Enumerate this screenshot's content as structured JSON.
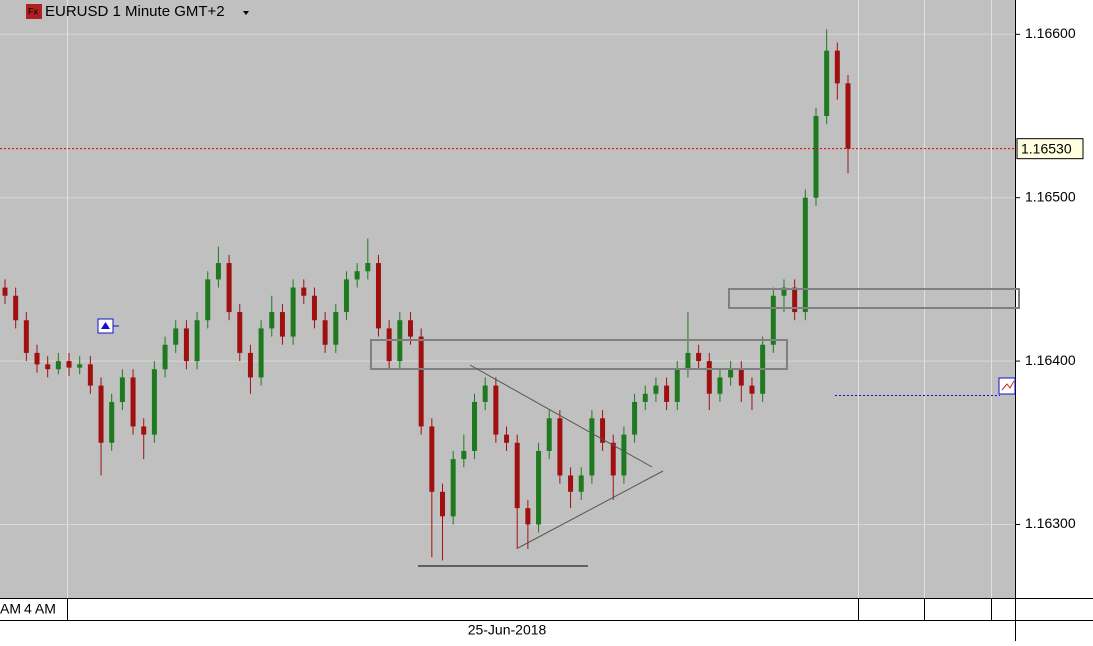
{
  "chart_data": {
    "type": "candlestick",
    "title": "EURUSD 1 Minute GMT+2",
    "series": [
      {
        "up_color": "#1e7a1e",
        "down_color": "#a01010",
        "open": [
          1.16445,
          1.1644,
          1.16425,
          1.16405,
          1.16398,
          1.16395,
          1.164,
          1.16396,
          1.16398,
          1.16385,
          1.1635,
          1.16375,
          1.1639,
          1.1636,
          1.16355,
          1.16395,
          1.1641,
          1.1642,
          1.164,
          1.16425,
          1.1645,
          1.1646,
          1.1643,
          1.16405,
          1.1639,
          1.1642,
          1.1643,
          1.16415,
          1.16445,
          1.1644,
          1.16425,
          1.1641,
          1.1643,
          1.1645,
          1.16455,
          1.1646,
          1.1642,
          1.164,
          1.16425,
          1.16415,
          1.1636,
          1.1632,
          1.16305,
          1.1634,
          1.16345,
          1.16375,
          1.16385,
          1.16355,
          1.1635,
          1.1631,
          1.163,
          1.16345,
          1.16365,
          1.1633,
          1.1632,
          1.1633,
          1.16365,
          1.1635,
          1.1633,
          1.16355,
          1.16375,
          1.1638,
          1.16385,
          1.16375,
          1.16395,
          1.16405,
          1.164,
          1.1638,
          1.1639,
          1.16395,
          1.16385,
          1.1638,
          1.1641,
          1.1644,
          1.16445,
          1.1643,
          1.165,
          1.1655,
          1.1659,
          1.1657
        ],
        "high": [
          1.1645,
          1.16445,
          1.1643,
          1.1641,
          1.16403,
          1.16405,
          1.16405,
          1.16403,
          1.16403,
          1.1639,
          1.1638,
          1.16395,
          1.16395,
          1.16365,
          1.164,
          1.16415,
          1.16425,
          1.16425,
          1.1643,
          1.16455,
          1.1647,
          1.16465,
          1.16435,
          1.1641,
          1.16425,
          1.1644,
          1.16435,
          1.1645,
          1.1645,
          1.16445,
          1.1643,
          1.16435,
          1.16455,
          1.1646,
          1.16475,
          1.16465,
          1.16425,
          1.1643,
          1.1643,
          1.1642,
          1.16365,
          1.16325,
          1.16345,
          1.16355,
          1.1638,
          1.1639,
          1.1639,
          1.1636,
          1.16355,
          1.16315,
          1.1635,
          1.1637,
          1.1637,
          1.16335,
          1.16335,
          1.1637,
          1.1637,
          1.16355,
          1.1636,
          1.1638,
          1.16385,
          1.1639,
          1.1639,
          1.164,
          1.1643,
          1.1641,
          1.16405,
          1.16395,
          1.164,
          1.164,
          1.1639,
          1.16415,
          1.16445,
          1.1645,
          1.1645,
          1.16505,
          1.16555,
          1.16603,
          1.16595,
          1.16575
        ],
        "low": [
          1.16435,
          1.1642,
          1.164,
          1.16393,
          1.1639,
          1.16392,
          1.16391,
          1.16392,
          1.1638,
          1.1633,
          1.16345,
          1.1637,
          1.16355,
          1.1634,
          1.1635,
          1.1639,
          1.16405,
          1.16395,
          1.16395,
          1.1642,
          1.16445,
          1.16425,
          1.164,
          1.1638,
          1.16385,
          1.16415,
          1.1641,
          1.1641,
          1.16435,
          1.1642,
          1.16405,
          1.16405,
          1.16425,
          1.16445,
          1.1645,
          1.16415,
          1.16395,
          1.16395,
          1.1641,
          1.16355,
          1.1628,
          1.16278,
          1.163,
          1.16335,
          1.1634,
          1.1637,
          1.1635,
          1.16345,
          1.16285,
          1.16285,
          1.16295,
          1.1634,
          1.16325,
          1.1631,
          1.16315,
          1.16325,
          1.16345,
          1.16315,
          1.16325,
          1.1635,
          1.1637,
          1.16375,
          1.1637,
          1.1637,
          1.1639,
          1.16395,
          1.1637,
          1.16375,
          1.16385,
          1.16375,
          1.1637,
          1.16375,
          1.16405,
          1.1643,
          1.16425,
          1.16425,
          1.16495,
          1.16545,
          1.1656,
          1.16515
        ],
        "close": [
          1.1644,
          1.16425,
          1.16405,
          1.16398,
          1.16395,
          1.164,
          1.16396,
          1.16398,
          1.16385,
          1.1635,
          1.16375,
          1.1639,
          1.1636,
          1.16355,
          1.16395,
          1.1641,
          1.1642,
          1.164,
          1.16425,
          1.1645,
          1.1646,
          1.1643,
          1.16405,
          1.1639,
          1.1642,
          1.1643,
          1.16415,
          1.16445,
          1.1644,
          1.16425,
          1.1641,
          1.1643,
          1.1645,
          1.16455,
          1.1646,
          1.1642,
          1.164,
          1.16425,
          1.16415,
          1.1636,
          1.1632,
          1.16305,
          1.1634,
          1.16345,
          1.16375,
          1.16385,
          1.16355,
          1.1635,
          1.1631,
          1.163,
          1.16345,
          1.16365,
          1.1633,
          1.1632,
          1.1633,
          1.16365,
          1.1635,
          1.1633,
          1.16355,
          1.16375,
          1.1638,
          1.16385,
          1.16375,
          1.16395,
          1.16405,
          1.164,
          1.1638,
          1.1639,
          1.16395,
          1.16385,
          1.1638,
          1.1641,
          1.1644,
          1.16445,
          1.1643,
          1.165,
          1.1655,
          1.1659,
          1.1657,
          1.1653
        ]
      }
    ],
    "ylim": [
      1.16255,
      1.16621
    ],
    "yticks": [
      {
        "value": 1.163,
        "label": "1.16300"
      },
      {
        "value": 1.164,
        "label": "1.16400"
      },
      {
        "value": 1.165,
        "label": "1.16500"
      },
      {
        "value": 1.166,
        "label": "1.16600"
      }
    ],
    "grid": true,
    "price_line": 1.1653,
    "price_label": "1.16530",
    "price_line_color": "#e00000",
    "time_labels": [
      "AM",
      "4 AM"
    ],
    "date_label": "25-Jun-2018"
  }
}
